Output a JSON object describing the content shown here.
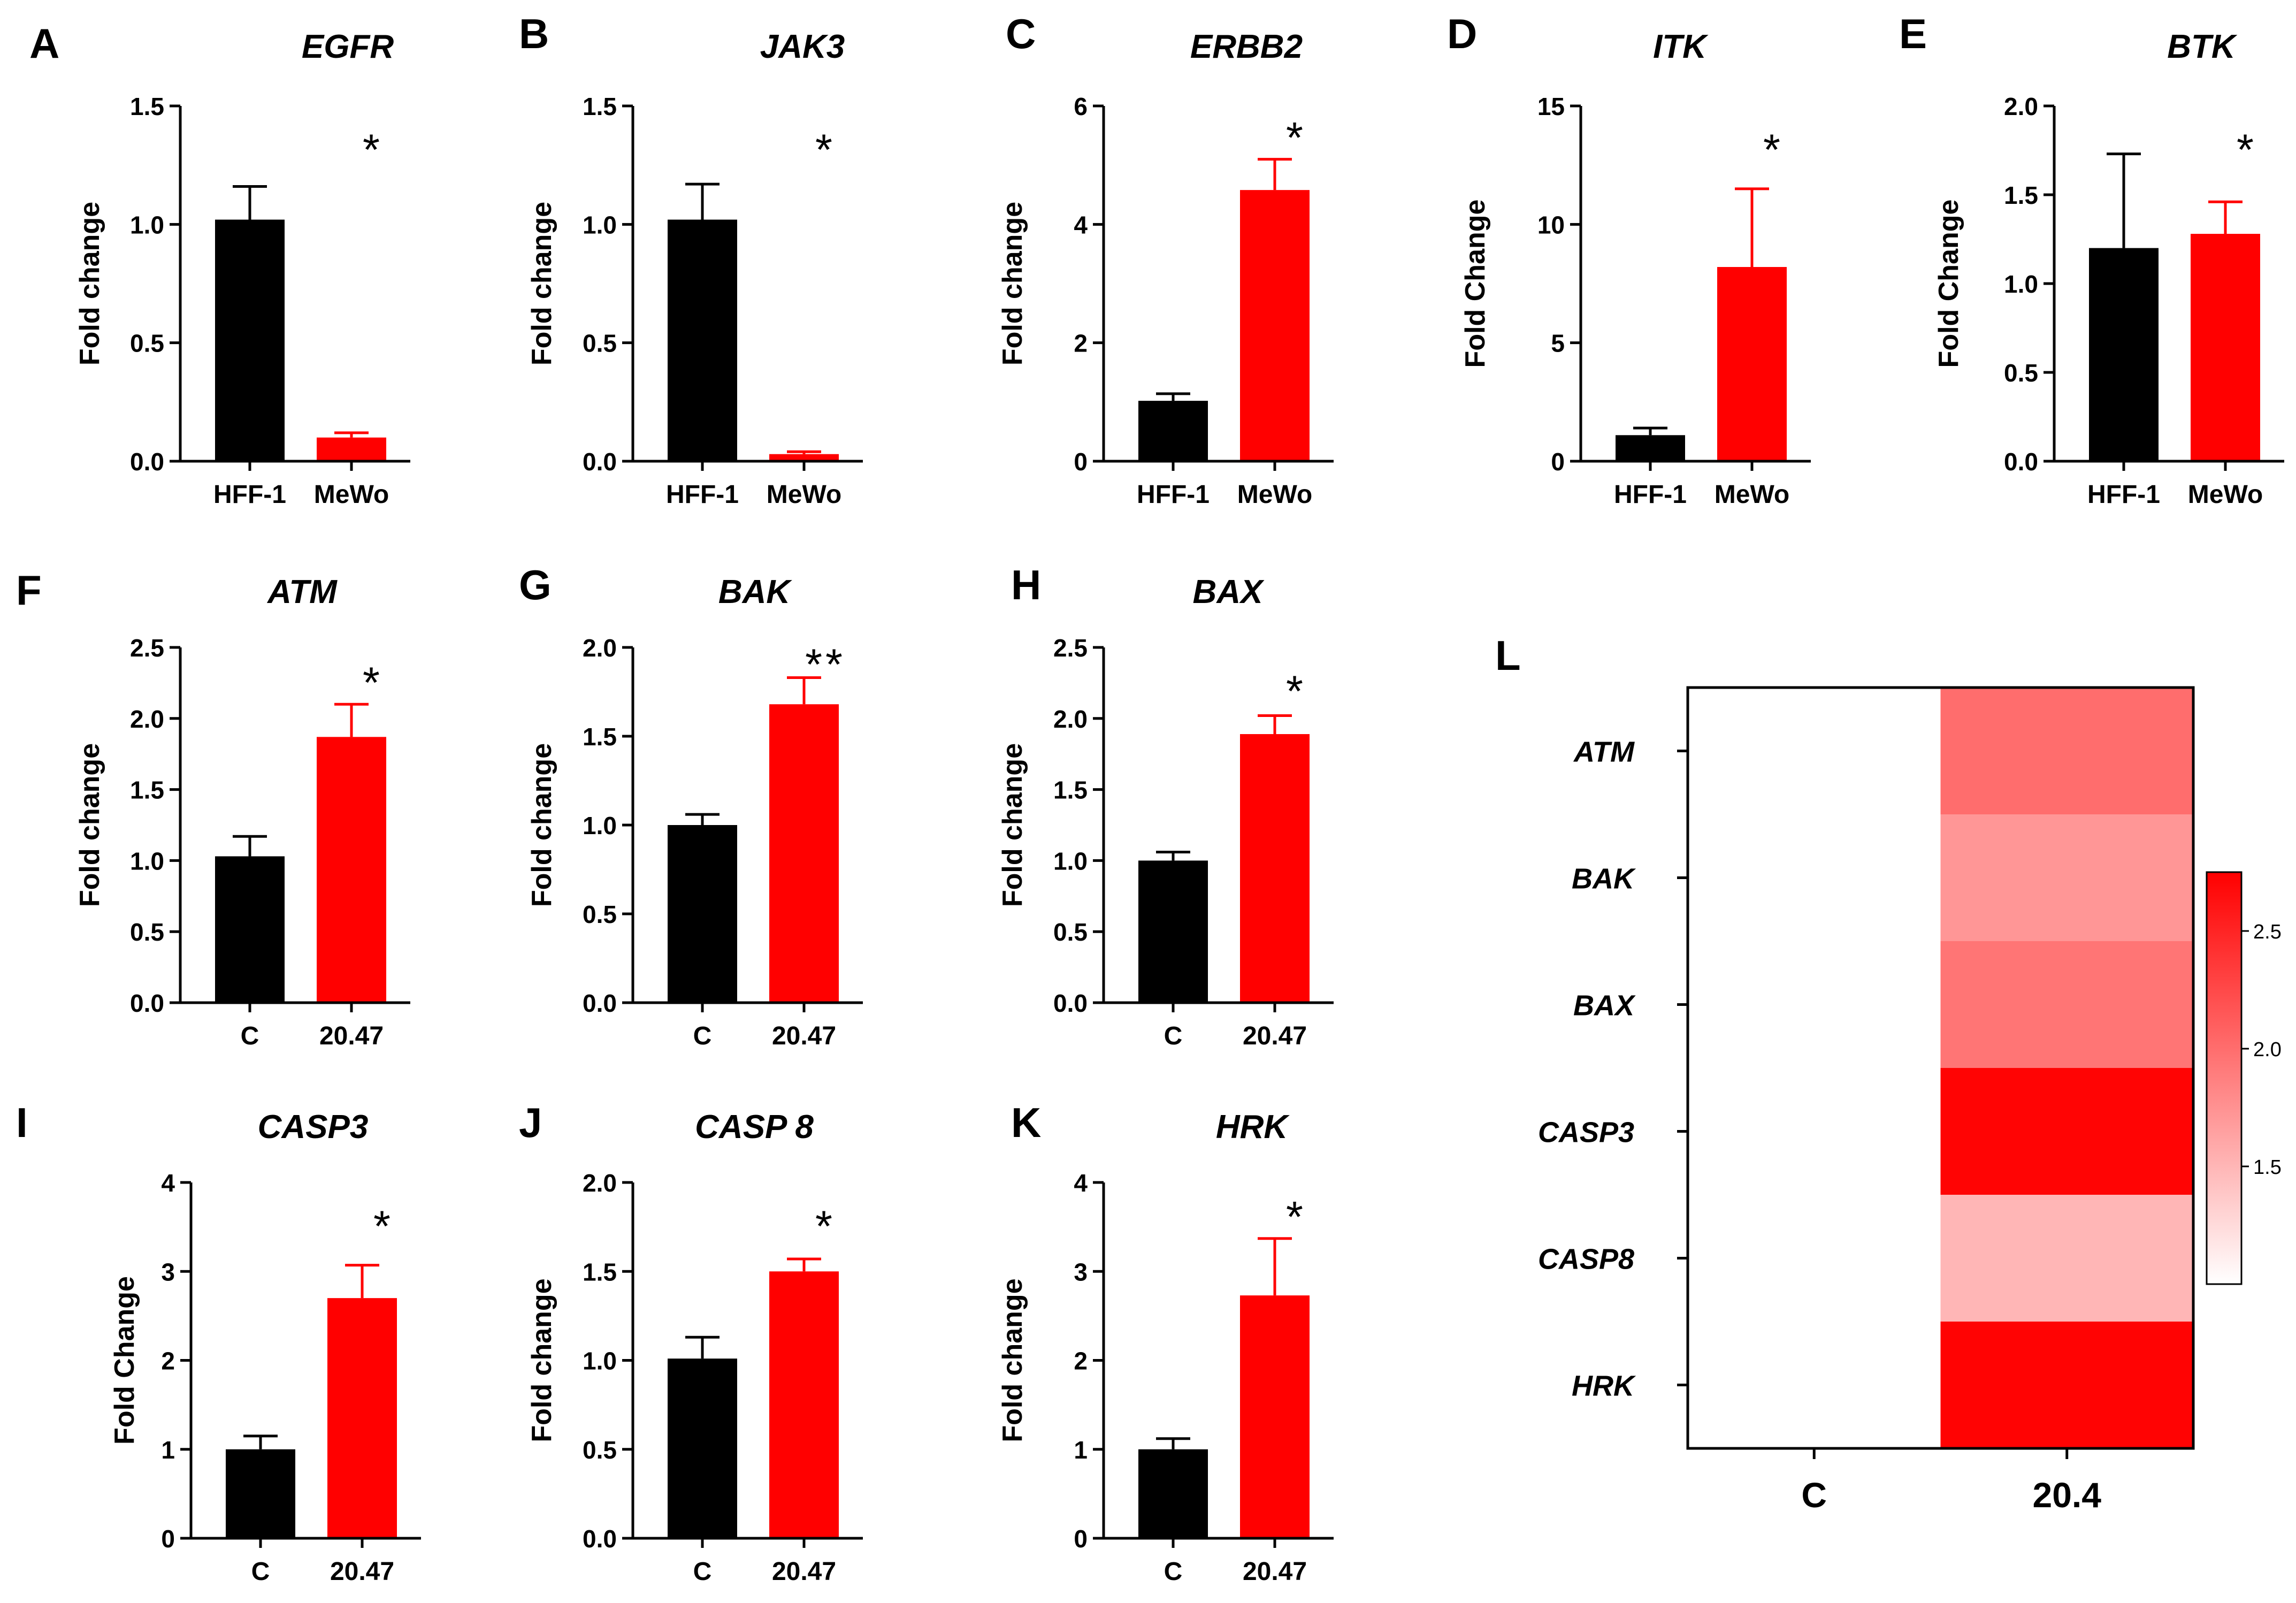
{
  "colors": {
    "control": "#000000",
    "treated": "#ff0000",
    "axis": "#000000"
  },
  "chart_data": [
    {
      "id": "A",
      "type": "bar",
      "panel_letter": "A",
      "title": "EGFR",
      "ylabel": "Fold change",
      "categories": [
        "HFF-1",
        "MeWo"
      ],
      "values": [
        1.02,
        0.1
      ],
      "errors": [
        0.14,
        0.02
      ],
      "ylim": [
        0,
        1.5
      ],
      "yticks": [
        "0.0",
        "0.5",
        "1.0",
        "1.5"
      ],
      "significance": "*"
    },
    {
      "id": "B",
      "type": "bar",
      "panel_letter": "B",
      "title": "JAK3",
      "ylabel": "Fold change",
      "categories": [
        "HFF-1",
        "MeWo"
      ],
      "values": [
        1.02,
        0.03
      ],
      "errors": [
        0.15,
        0.01
      ],
      "ylim": [
        0,
        1.5
      ],
      "yticks": [
        "0.0",
        "0.5",
        "1.0",
        "1.5"
      ],
      "significance": "*"
    },
    {
      "id": "C",
      "type": "bar",
      "panel_letter": "C",
      "title": "ERBB2",
      "ylabel": "Fold change",
      "categories": [
        "HFF-1",
        "MeWo"
      ],
      "values": [
        1.02,
        4.58
      ],
      "errors": [
        0.12,
        0.52
      ],
      "ylim": [
        0,
        6
      ],
      "yticks": [
        "0",
        "2",
        "4",
        "6"
      ],
      "significance": "*"
    },
    {
      "id": "D",
      "type": "bar",
      "panel_letter": "D",
      "title": "ITK",
      "ylabel": "Fold Change",
      "categories": [
        "HFF-1",
        "MeWo"
      ],
      "values": [
        1.1,
        8.2
      ],
      "errors": [
        0.3,
        3.3
      ],
      "ylim": [
        0,
        15
      ],
      "yticks": [
        "0",
        "5",
        "10",
        "15"
      ],
      "significance": "*"
    },
    {
      "id": "E",
      "type": "bar",
      "panel_letter": "E",
      "title": "BTK",
      "ylabel": "Fold Change",
      "categories": [
        "HFF-1",
        "MeWo"
      ],
      "values": [
        1.2,
        1.28
      ],
      "errors": [
        0.53,
        0.18
      ],
      "ylim": [
        0,
        2.0
      ],
      "yticks": [
        "0.0",
        "0.5",
        "1.0",
        "1.5",
        "2.0"
      ],
      "significance": "*"
    },
    {
      "id": "F",
      "type": "bar",
      "panel_letter": "F",
      "title": "ATM",
      "ylabel": "Fold change",
      "categories": [
        "C",
        "20.47"
      ],
      "values": [
        1.03,
        1.87
      ],
      "errors": [
        0.14,
        0.23
      ],
      "ylim": [
        0,
        2.5
      ],
      "yticks": [
        "0.0",
        "0.5",
        "1.0",
        "1.5",
        "2.0",
        "2.5"
      ],
      "significance": "*"
    },
    {
      "id": "G",
      "type": "bar",
      "panel_letter": "G",
      "title": "BAK",
      "ylabel": "Fold change",
      "categories": [
        "C",
        "20.47"
      ],
      "values": [
        1.0,
        1.68
      ],
      "errors": [
        0.06,
        0.15
      ],
      "ylim": [
        0,
        2.0
      ],
      "yticks": [
        "0.0",
        "0.5",
        "1.0",
        "1.5",
        "2.0"
      ],
      "significance": "**"
    },
    {
      "id": "H",
      "type": "bar",
      "panel_letter": "H",
      "title": "BAX",
      "ylabel": "Fold change",
      "categories": [
        "C",
        "20.47"
      ],
      "values": [
        1.0,
        1.89
      ],
      "errors": [
        0.06,
        0.13
      ],
      "ylim": [
        0,
        2.5
      ],
      "yticks": [
        "0.0",
        "0.5",
        "1.0",
        "1.5",
        "2.0",
        "2.5"
      ],
      "significance": "*"
    },
    {
      "id": "I",
      "type": "bar",
      "panel_letter": "I",
      "title": "CASP3",
      "ylabel": "Fold Change",
      "categories": [
        "C",
        "20.47"
      ],
      "values": [
        1.0,
        2.7
      ],
      "errors": [
        0.15,
        0.37
      ],
      "ylim": [
        0,
        4
      ],
      "yticks": [
        "0",
        "1",
        "2",
        "3",
        "4"
      ],
      "significance": "*"
    },
    {
      "id": "J",
      "type": "bar",
      "panel_letter": "J",
      "title": "CASP 8",
      "ylabel": "Fold change",
      "categories": [
        "C",
        "20.47"
      ],
      "values": [
        1.01,
        1.5
      ],
      "errors": [
        0.12,
        0.07
      ],
      "ylim": [
        0,
        2.0
      ],
      "yticks": [
        "0.0",
        "0.5",
        "1.0",
        "1.5",
        "2.0"
      ],
      "significance": "*"
    },
    {
      "id": "K",
      "type": "bar",
      "panel_letter": "K",
      "title": "HRK",
      "ylabel": "Fold change",
      "categories": [
        "C",
        "20.47"
      ],
      "values": [
        1.0,
        2.73
      ],
      "errors": [
        0.12,
        0.64
      ],
      "ylim": [
        0,
        4
      ],
      "yticks": [
        "0",
        "1",
        "2",
        "3",
        "4"
      ],
      "significance": "*"
    },
    {
      "id": "L",
      "type": "heatmap",
      "panel_letter": "L",
      "rows": [
        "ATM",
        "BAK",
        "BAX",
        "CASP3",
        "CASP8",
        "HRK"
      ],
      "columns": [
        "C",
        "20.4"
      ],
      "values": [
        [
          1.0,
          2.0
        ],
        [
          1.0,
          1.72
        ],
        [
          1.0,
          1.95
        ],
        [
          1.0,
          2.72
        ],
        [
          1.0,
          1.5
        ],
        [
          1.0,
          2.73
        ]
      ],
      "color_range": [
        1.0,
        2.75
      ],
      "colorbar_ticks": [
        1.5,
        2.0,
        2.5
      ],
      "colorbar_labels": [
        "1.5",
        "2.0",
        "2.5"
      ]
    }
  ]
}
